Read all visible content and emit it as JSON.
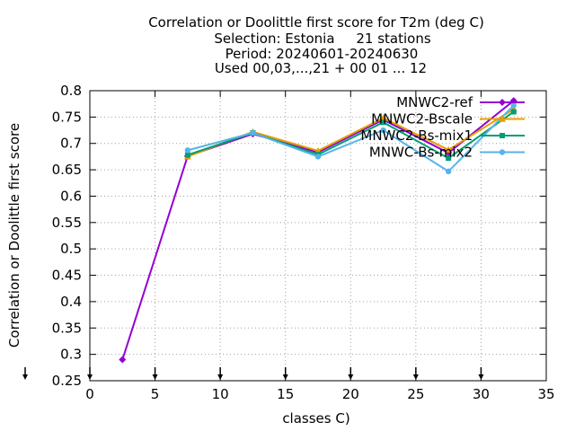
{
  "chart_data": {
    "type": "line",
    "title_lines": [
      "Correlation or Doolittle first score  for T2m (deg C)",
      "Selection: Estonia     21 stations",
      "Period: 20240601-20240630",
      "Used 00,03,...,21 + 00 01 ... 12"
    ],
    "xlabel": "classes C)",
    "ylabel": "Correlation or Doolittle first score",
    "xlim": [
      0,
      35
    ],
    "ylim": [
      0.25,
      0.8
    ],
    "xticks": [
      0,
      5,
      10,
      15,
      20,
      25,
      30,
      35
    ],
    "yticks": [
      0.25,
      0.3,
      0.35,
      0.4,
      0.45,
      0.5,
      0.55,
      0.6,
      0.65,
      0.7,
      0.75,
      0.8
    ],
    "xtick_labels": [
      "0",
      "5",
      "10",
      "15",
      "20",
      "25",
      "30",
      "35"
    ],
    "ytick_labels": [
      "0.25",
      "0.3",
      "0.35",
      "0.4",
      "0.45",
      "0.5",
      "0.55",
      "0.6",
      "0.65",
      "0.7",
      "0.75",
      "0.8"
    ],
    "grid": true,
    "legend_position": "top-right",
    "arrow_markers_x": [
      0,
      5,
      10,
      15,
      20,
      25,
      30
    ],
    "series": [
      {
        "name": "MNWC2-ref",
        "color": "#9400d3",
        "marker": "diamond",
        "x": [
          2.5,
          7.5,
          12.5,
          17.5,
          22.5,
          27.5,
          32.5
        ],
        "y": [
          0.29,
          0.676,
          0.718,
          0.683,
          0.745,
          0.682,
          0.781
        ]
      },
      {
        "name": "MNWC2-Bscale",
        "color": "#e69f00",
        "marker": "triangle",
        "x": [
          7.5,
          12.5,
          17.5,
          22.5,
          27.5,
          32.5
        ],
        "y": [
          0.675,
          0.722,
          0.686,
          0.748,
          0.688,
          0.765
        ]
      },
      {
        "name": "MNWC2-Bs-mix1",
        "color": "#009e73",
        "marker": "square",
        "x": [
          7.5,
          12.5,
          17.5,
          22.5,
          27.5,
          32.5
        ],
        "y": [
          0.678,
          0.72,
          0.679,
          0.74,
          0.672,
          0.76
        ]
      },
      {
        "name": "MNWC-Bs-mix2",
        "color": "#56b4e9",
        "marker": "circle",
        "x": [
          7.5,
          12.5,
          17.5,
          22.5,
          27.5,
          32.5
        ],
        "y": [
          0.687,
          0.72,
          0.675,
          0.725,
          0.647,
          0.772
        ]
      }
    ]
  }
}
